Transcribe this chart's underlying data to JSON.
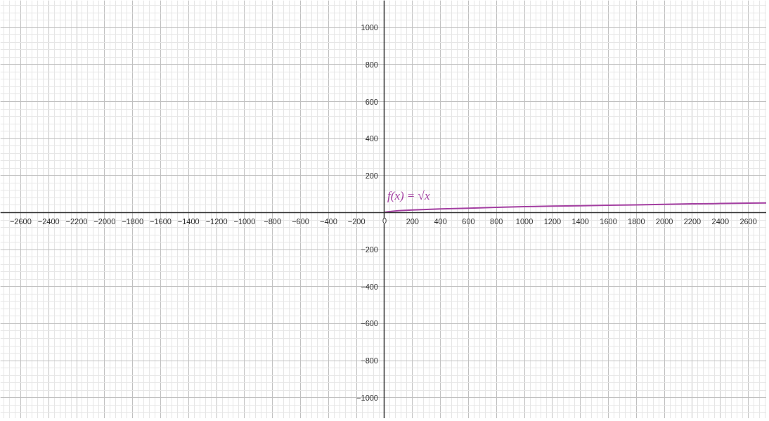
{
  "chart_data": {
    "type": "line",
    "x": [
      0,
      5,
      20,
      50,
      100,
      200,
      300,
      400,
      600,
      800,
      1000,
      1200,
      1400,
      1600,
      1800,
      2000,
      2200,
      2400,
      2600,
      2730
    ],
    "series": [
      {
        "color": "#a33ea1",
        "values": [
          0,
          2,
          4,
          7,
          10,
          14,
          17,
          20,
          24,
          28,
          32,
          35,
          37,
          40,
          42,
          45,
          47,
          49,
          51,
          52
        ]
      }
    ],
    "annotations": [
      "f(x) = √x"
    ],
    "xlim": [
      -2745,
      2730
    ],
    "ylim": [
      -1113,
      1147
    ],
    "xticks": [
      {
        "value": -2600,
        "label": "−2600"
      },
      {
        "value": -2400,
        "label": "−2400"
      },
      {
        "value": -2200,
        "label": "−2200"
      },
      {
        "value": -2000,
        "label": "−2000"
      },
      {
        "value": -1800,
        "label": "−1800"
      },
      {
        "value": -1600,
        "label": "−1600"
      },
      {
        "value": -1400,
        "label": "−1400"
      },
      {
        "value": -1200,
        "label": "−1200"
      },
      {
        "value": -1000,
        "label": "−1000"
      },
      {
        "value": -800,
        "label": "−800"
      },
      {
        "value": -600,
        "label": "−600"
      },
      {
        "value": -400,
        "label": "−400"
      },
      {
        "value": -200,
        "label": "−200"
      },
      0,
      200,
      400,
      600,
      800,
      1000,
      1200,
      1400,
      1600,
      1800,
      2000,
      2200,
      2400,
      2600
    ],
    "yticks": [
      {
        "value": -1000,
        "label": "−1000"
      },
      {
        "value": -800,
        "label": "−800"
      },
      {
        "value": -600,
        "label": "−600"
      },
      {
        "value": -400,
        "label": "−400"
      },
      {
        "value": -200,
        "label": "−200"
      },
      200,
      400,
      600,
      800,
      1000
    ],
    "grid": true,
    "marker": "none",
    "line_style": "solid"
  }
}
